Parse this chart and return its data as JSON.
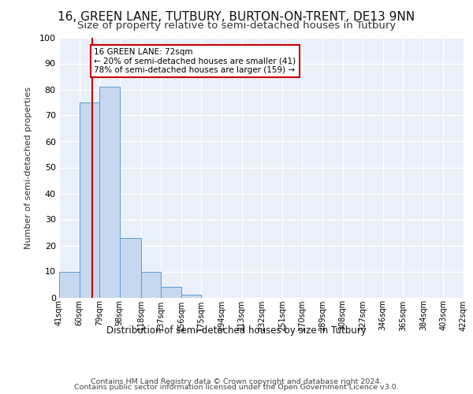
{
  "title1": "16, GREEN LANE, TUTBURY, BURTON-ON-TRENT, DE13 9NN",
  "title2": "Size of property relative to semi-detached houses in Tutbury",
  "xlabel": "Distribution of semi-detached houses by size in Tutbury",
  "ylabel": "Number of semi-detached properties",
  "footer1": "Contains HM Land Registry data © Crown copyright and database right 2024.",
  "footer2": "Contains public sector information licensed under the Open Government Licence v3.0.",
  "bins": [
    41,
    60,
    79,
    98,
    118,
    137,
    156,
    175,
    194,
    213,
    232,
    251,
    270,
    289,
    308,
    327,
    346,
    365,
    384,
    403,
    422
  ],
  "bin_labels": [
    "41sqm",
    "60sqm",
    "79sqm",
    "98sqm",
    "118sqm",
    "137sqm",
    "156sqm",
    "175sqm",
    "194sqm",
    "213sqm",
    "232sqm",
    "251sqm",
    "270sqm",
    "289sqm",
    "308sqm",
    "327sqm",
    "346sqm",
    "365sqm",
    "384sqm",
    "403sqm",
    "422sqm"
  ],
  "counts": [
    10,
    75,
    81,
    23,
    10,
    4,
    1,
    0,
    0,
    0,
    0,
    0,
    0,
    0,
    0,
    0,
    0,
    0,
    0,
    0
  ],
  "bar_color": "#c5d8f0",
  "bar_edge_color": "#5b9bd5",
  "property_sqm": 72,
  "property_line_color": "#cc0000",
  "annotation_line1": "16 GREEN LANE: 72sqm",
  "annotation_line2": "← 20% of semi-detached houses are smaller (41)",
  "annotation_line3": "78% of semi-detached houses are larger (159) →",
  "annotation_box_color": "#ffffff",
  "annotation_box_edge": "#cc0000",
  "ylim": [
    0,
    100
  ],
  "yticks": [
    0,
    10,
    20,
    30,
    40,
    50,
    60,
    70,
    80,
    90,
    100
  ],
  "background_color": "#eaf0f9",
  "grid_color": "#ffffff",
  "title1_fontsize": 11,
  "title2_fontsize": 9.5
}
